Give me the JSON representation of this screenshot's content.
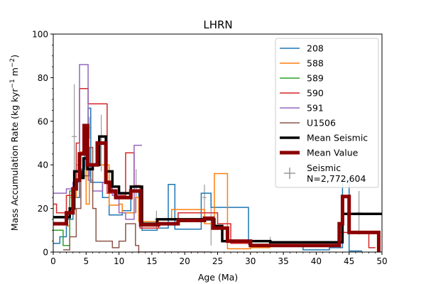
{
  "chart_data": {
    "type": "line",
    "title": "LHRN",
    "xlabel": "Age (Ma)",
    "ylabel_main": "Mass Accumulation Rate (kg kyr",
    "ylabel_sup1": "−1",
    "ylabel_mid": " m",
    "ylabel_sup2": "−2",
    "ylabel_end": ")",
    "xlim": [
      0,
      50
    ],
    "ylim": [
      0,
      100
    ],
    "xticks": [
      "0",
      "5",
      "10",
      "15",
      "20",
      "25",
      "30",
      "35",
      "40",
      "45",
      "50"
    ],
    "yticks": [
      "0",
      "20",
      "40",
      "60",
      "80",
      "100"
    ],
    "grid": false,
    "legend_position": "top-right",
    "series": [
      {
        "name": "208",
        "color": "#1f77b4",
        "width": 1.5,
        "points": [
          [
            0,
            4
          ],
          [
            1,
            4
          ],
          [
            1,
            7
          ],
          [
            2,
            7
          ],
          [
            2,
            15
          ],
          [
            3,
            15
          ],
          [
            3,
            25
          ],
          [
            4,
            25
          ],
          [
            4,
            38
          ],
          [
            4.8,
            38
          ],
          [
            4.8,
            55
          ],
          [
            5.3,
            55
          ],
          [
            5.3,
            66
          ],
          [
            5.7,
            66
          ],
          [
            5.7,
            32
          ],
          [
            7.5,
            32
          ],
          [
            7.5,
            25
          ],
          [
            8.5,
            25
          ],
          [
            8.5,
            17
          ],
          [
            10.5,
            17
          ],
          [
            10.5,
            19
          ],
          [
            11.8,
            19
          ],
          [
            11.8,
            28
          ],
          [
            13,
            28
          ],
          [
            13,
            25
          ],
          [
            13.5,
            25
          ],
          [
            13.5,
            10
          ],
          [
            15.8,
            10
          ],
          [
            15.8,
            11
          ],
          [
            17.5,
            11
          ],
          [
            17.5,
            31
          ],
          [
            18.5,
            31
          ],
          [
            18.5,
            10.5
          ],
          [
            22.5,
            10.5
          ],
          [
            22.5,
            27
          ],
          [
            24,
            27
          ],
          [
            24,
            20.5
          ],
          [
            29.7,
            20.5
          ],
          [
            29.7,
            3.5
          ],
          [
            38,
            3.5
          ],
          [
            38,
            1
          ],
          [
            42,
            1
          ],
          [
            42,
            2
          ],
          [
            44,
            2
          ],
          [
            44,
            33
          ],
          [
            45,
            33
          ],
          [
            45,
            0.5
          ],
          [
            47,
            0.5
          ]
        ]
      },
      {
        "name": "588",
        "color": "#ff7f0e",
        "width": 1.5,
        "points": [
          [
            2,
            12
          ],
          [
            2.5,
            12
          ],
          [
            2.5,
            25
          ],
          [
            3.5,
            25
          ],
          [
            3.5,
            40
          ],
          [
            4.2,
            40
          ],
          [
            4.2,
            46
          ],
          [
            5,
            46
          ],
          [
            5,
            22
          ],
          [
            5.5,
            22
          ],
          [
            5.5,
            40
          ],
          [
            8.5,
            40
          ],
          [
            8.5,
            21.5
          ],
          [
            10,
            21.5
          ],
          [
            10,
            22
          ],
          [
            10.5,
            22
          ],
          [
            10.5,
            18
          ],
          [
            12.5,
            18
          ],
          [
            12.5,
            25
          ],
          [
            13,
            25
          ],
          [
            13,
            14
          ],
          [
            16,
            14
          ],
          [
            16,
            15
          ],
          [
            18,
            15
          ],
          [
            18,
            19.5
          ],
          [
            23,
            19.5
          ],
          [
            23,
            13
          ],
          [
            24.5,
            13
          ],
          [
            24.5,
            36
          ],
          [
            26.5,
            36
          ],
          [
            26.5,
            1.5
          ],
          [
            30,
            1.5
          ],
          [
            30,
            2
          ],
          [
            33,
            2
          ]
        ]
      },
      {
        "name": "589",
        "color": "#2ca02c",
        "width": 1.5,
        "points": [
          [
            0,
            10
          ],
          [
            1.5,
            10
          ],
          [
            1.5,
            3
          ],
          [
            2.5,
            3
          ],
          [
            2.5,
            28
          ],
          [
            3,
            28
          ]
        ]
      },
      {
        "name": "590",
        "color": "#d62728",
        "width": 1.5,
        "points": [
          [
            0,
            22
          ],
          [
            0.5,
            22
          ],
          [
            0.5,
            18
          ],
          [
            2,
            18
          ],
          [
            2,
            26
          ],
          [
            3,
            26
          ],
          [
            3,
            32
          ],
          [
            3.5,
            32
          ],
          [
            3.5,
            50
          ],
          [
            4,
            50
          ],
          [
            4,
            75
          ],
          [
            5.3,
            75
          ],
          [
            5.3,
            68
          ],
          [
            8.2,
            68
          ],
          [
            8.2,
            27
          ],
          [
            9.5,
            27
          ],
          [
            9.5,
            26
          ],
          [
            11,
            26
          ],
          [
            11,
            45.5
          ],
          [
            12.3,
            45.5
          ],
          [
            12.3,
            30.5
          ],
          [
            13.2,
            30.5
          ],
          [
            13.2,
            11
          ],
          [
            16,
            11
          ],
          [
            16,
            12.5
          ],
          [
            19,
            12.5
          ],
          [
            19,
            18
          ],
          [
            25,
            18
          ],
          [
            25,
            13
          ],
          [
            27,
            13
          ],
          [
            27,
            4
          ],
          [
            30,
            4
          ],
          [
            30,
            3
          ],
          [
            43.5,
            3
          ],
          [
            43.5,
            9
          ],
          [
            48,
            9
          ],
          [
            48,
            2
          ],
          [
            49,
            2
          ]
        ]
      },
      {
        "name": "591",
        "color": "#9467bd",
        "width": 1.5,
        "points": [
          [
            0,
            27
          ],
          [
            2,
            27
          ],
          [
            2,
            29
          ],
          [
            3,
            29
          ],
          [
            3,
            32
          ],
          [
            3.8,
            32
          ],
          [
            3.8,
            43
          ],
          [
            4,
            43
          ],
          [
            4,
            86
          ],
          [
            5.3,
            86
          ],
          [
            5.3,
            33
          ],
          [
            6,
            33
          ],
          [
            6,
            28
          ],
          [
            7.5,
            28
          ],
          [
            7.5,
            32
          ],
          [
            9,
            32
          ],
          [
            9,
            26
          ],
          [
            10,
            26
          ],
          [
            10,
            18
          ],
          [
            11,
            18
          ],
          [
            11,
            15
          ],
          [
            12.3,
            15
          ],
          [
            12.3,
            49
          ],
          [
            13.5,
            49
          ]
        ]
      },
      {
        "name": "U1506",
        "color": "#8c564b",
        "width": 1.5,
        "points": [
          [
            1.5,
            1
          ],
          [
            2.5,
            1
          ],
          [
            2.5,
            7
          ],
          [
            3.5,
            7
          ],
          [
            3.5,
            20
          ],
          [
            4.2,
            20
          ],
          [
            4.2,
            35
          ],
          [
            5.5,
            35
          ],
          [
            5.5,
            48
          ],
          [
            6,
            48
          ],
          [
            6,
            20
          ],
          [
            6.5,
            20
          ],
          [
            6.5,
            5
          ],
          [
            9,
            5
          ],
          [
            9,
            2
          ],
          [
            10,
            2
          ],
          [
            10,
            5
          ],
          [
            11,
            5
          ],
          [
            11,
            13
          ],
          [
            12.5,
            13
          ],
          [
            12.5,
            3
          ],
          [
            13,
            3
          ],
          [
            13,
            0
          ],
          [
            24,
            0
          ]
        ]
      },
      {
        "name": "Mean Seismic",
        "color": "#000000",
        "width": 3.5,
        "points": [
          [
            0,
            16
          ],
          [
            2.5,
            16
          ],
          [
            2.5,
            20
          ],
          [
            3.2,
            20
          ],
          [
            3.2,
            37
          ],
          [
            4.2,
            37
          ],
          [
            4.2,
            34
          ],
          [
            4.6,
            34
          ],
          [
            4.6,
            43
          ],
          [
            5.2,
            43
          ],
          [
            5.2,
            38
          ],
          [
            6,
            38
          ],
          [
            6,
            40
          ],
          [
            7,
            40
          ],
          [
            7,
            53
          ],
          [
            8,
            53
          ],
          [
            8,
            37
          ],
          [
            9,
            37
          ],
          [
            9,
            30
          ],
          [
            10,
            30
          ],
          [
            10,
            27
          ],
          [
            11.8,
            27
          ],
          [
            11.8,
            30
          ],
          [
            13.5,
            30
          ],
          [
            13.5,
            13
          ],
          [
            15.8,
            13
          ],
          [
            15.8,
            15
          ],
          [
            24.5,
            15
          ],
          [
            24.5,
            12
          ],
          [
            25.7,
            12
          ],
          [
            25.7,
            5
          ],
          [
            33,
            5
          ],
          [
            33,
            4.5
          ],
          [
            44,
            4.5
          ],
          [
            44,
            17.5
          ],
          [
            50,
            17.5
          ]
        ]
      },
      {
        "name": "Mean Value",
        "color": "#8b0000",
        "width": 5,
        "points": [
          [
            0,
            13
          ],
          [
            2,
            13
          ],
          [
            2,
            18
          ],
          [
            3,
            18
          ],
          [
            3,
            29
          ],
          [
            3.5,
            29
          ],
          [
            3.5,
            33
          ],
          [
            4,
            33
          ],
          [
            4,
            45
          ],
          [
            4.7,
            45
          ],
          [
            4.7,
            58
          ],
          [
            5.2,
            58
          ],
          [
            5.2,
            40
          ],
          [
            6.7,
            40
          ],
          [
            6.7,
            50
          ],
          [
            8,
            50
          ],
          [
            8,
            32
          ],
          [
            8.6,
            32
          ],
          [
            8.6,
            28
          ],
          [
            9.5,
            28
          ],
          [
            9.5,
            25
          ],
          [
            11.8,
            25
          ],
          [
            11.8,
            28
          ],
          [
            13.3,
            28
          ],
          [
            13.3,
            12.5
          ],
          [
            16,
            12.5
          ],
          [
            16,
            13
          ],
          [
            19,
            13
          ],
          [
            19,
            14.5
          ],
          [
            23,
            14.5
          ],
          [
            23,
            15.5
          ],
          [
            24.3,
            15.5
          ],
          [
            24.3,
            11
          ],
          [
            26.5,
            11
          ],
          [
            26.5,
            5
          ],
          [
            30,
            5
          ],
          [
            30,
            3
          ],
          [
            43.5,
            3
          ],
          [
            43.5,
            13
          ],
          [
            44,
            13
          ],
          [
            44,
            25.5
          ],
          [
            45,
            25.5
          ],
          [
            45,
            9
          ],
          [
            49.5,
            9
          ],
          [
            49.5,
            0
          ]
        ]
      }
    ],
    "scatter": {
      "name": "Seismic\nN=2,772,604",
      "label_line1": "Seismic",
      "label_line2": "N=2,772,604",
      "color": "#999999",
      "points": [
        {
          "x": 3,
          "y": 27,
          "ex": 0.3,
          "ey": 3
        },
        {
          "x": 3.2,
          "y": 53,
          "ex": 0.4,
          "ey": 24
        },
        {
          "x": 4,
          "y": 42,
          "ex": 0.3,
          "ey": 10
        },
        {
          "x": 5.5,
          "y": 57,
          "ex": 0.3,
          "ey": 5
        },
        {
          "x": 7.3,
          "y": 50,
          "ex": 0.3,
          "ey": 13
        },
        {
          "x": 8.5,
          "y": 31,
          "ex": 0.3,
          "ey": 8
        },
        {
          "x": 12.6,
          "y": 28,
          "ex": 0.3,
          "ey": 10
        },
        {
          "x": 15.7,
          "y": 15,
          "ex": 0.3,
          "ey": 4
        },
        {
          "x": 23,
          "y": 25,
          "ex": 0.3,
          "ey": 6
        },
        {
          "x": 24,
          "y": 15,
          "ex": 0.3,
          "ey": 12
        },
        {
          "x": 33,
          "y": 5,
          "ex": 0.3,
          "ey": 2
        },
        {
          "x": 46.5,
          "y": 18,
          "ex": 0.3,
          "ey": 10
        }
      ]
    }
  }
}
